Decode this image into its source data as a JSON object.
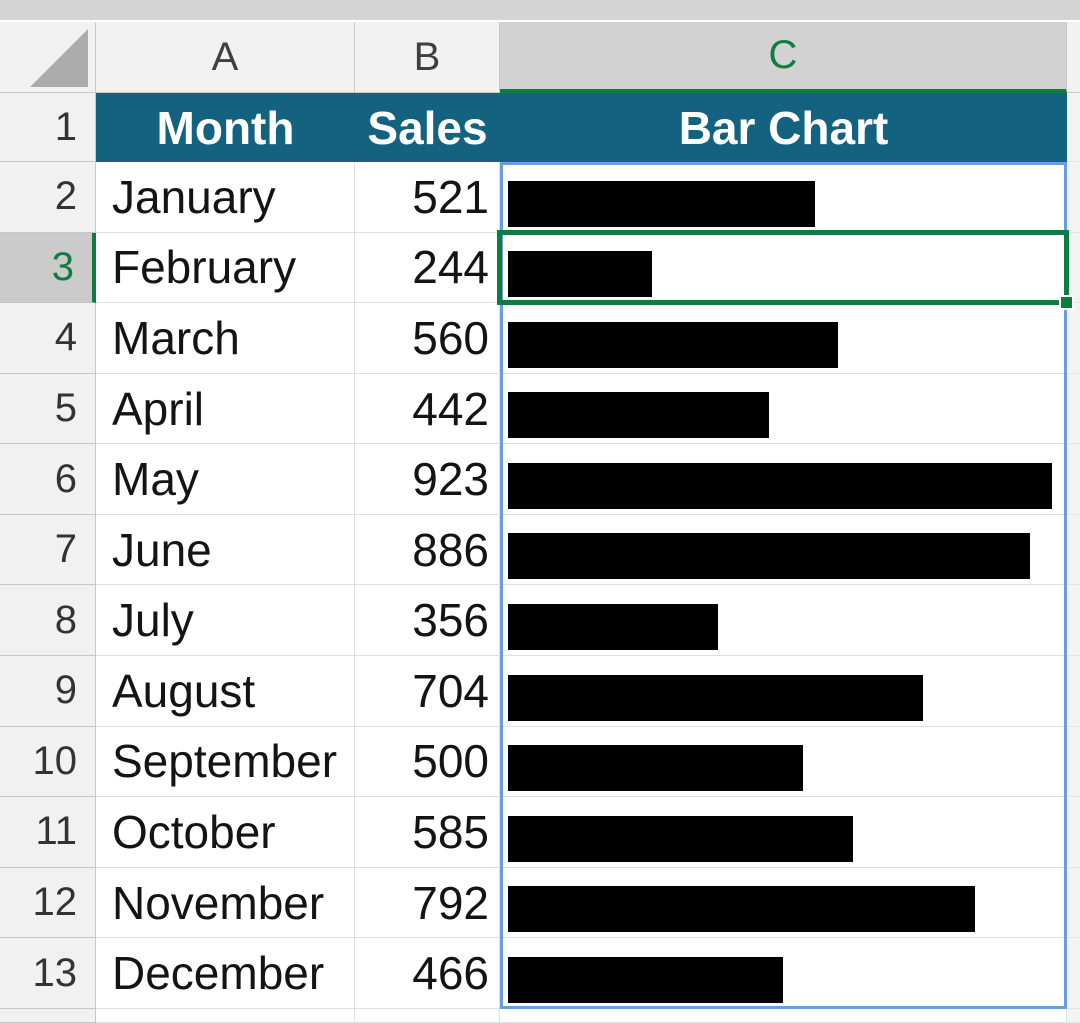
{
  "sheet": {
    "column_headers": [
      {
        "letter": "A",
        "selected": false
      },
      {
        "letter": "B",
        "selected": false
      },
      {
        "letter": "C",
        "selected": true
      }
    ],
    "header_row": {
      "row_number": "1",
      "month_label": "Month",
      "sales_label": "Sales",
      "bar_chart_label": "Bar Chart"
    },
    "rows": [
      {
        "row_number": "2",
        "month": "January",
        "sales": 521
      },
      {
        "row_number": "3",
        "month": "February",
        "sales": 244
      },
      {
        "row_number": "4",
        "month": "March",
        "sales": 560
      },
      {
        "row_number": "5",
        "month": "April",
        "sales": 442
      },
      {
        "row_number": "6",
        "month": "May",
        "sales": 923
      },
      {
        "row_number": "7",
        "month": "June",
        "sales": 886
      },
      {
        "row_number": "8",
        "month": "July",
        "sales": 356
      },
      {
        "row_number": "9",
        "month": "August",
        "sales": 704
      },
      {
        "row_number": "10",
        "month": "September",
        "sales": 500
      },
      {
        "row_number": "11",
        "month": "October",
        "sales": 585
      },
      {
        "row_number": "12",
        "month": "November",
        "sales": 792
      },
      {
        "row_number": "13",
        "month": "December",
        "sales": 466
      }
    ],
    "selection": {
      "active_row": "3",
      "active_column": "C"
    }
  },
  "colors": {
    "header_fill": "#136380",
    "header_text": "#ffffff",
    "accent_green": "#107c41",
    "range_outline_blue": "#6c9be0",
    "bar_fill": "#000000",
    "selected_header_gray": "#d2d2d2"
  },
  "chart_data": {
    "type": "bar",
    "orientation": "horizontal",
    "title": "Bar Chart",
    "categories": [
      "January",
      "February",
      "March",
      "April",
      "May",
      "June",
      "July",
      "August",
      "September",
      "October",
      "November",
      "December"
    ],
    "values": [
      521,
      244,
      560,
      442,
      923,
      886,
      356,
      704,
      500,
      585,
      792,
      466
    ],
    "max_value": 923,
    "bar_color": "#000000"
  }
}
